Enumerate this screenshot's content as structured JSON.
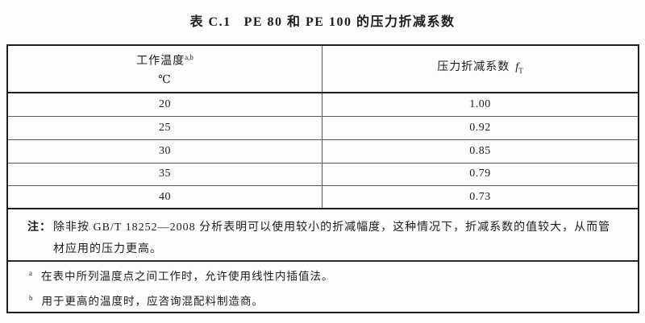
{
  "document": {
    "caption_label": "表 C.1",
    "caption_text": "PE 80 和 PE 100 的压力折减系数"
  },
  "table": {
    "col1_header": {
      "title": "工作温度",
      "superscript": "a,b",
      "unit": "℃"
    },
    "col2_header": {
      "title": "压力折减系数",
      "symbol": "f",
      "symbol_sub": "T"
    },
    "rows": [
      {
        "temperature": "20",
        "factor": "1.00"
      },
      {
        "temperature": "25",
        "factor": "0.92"
      },
      {
        "temperature": "30",
        "factor": "0.85"
      },
      {
        "temperature": "35",
        "factor": "0.79"
      },
      {
        "temperature": "40",
        "factor": "0.73"
      }
    ]
  },
  "note": {
    "label": "注：",
    "text": "除非按 GB/T 18252—2008 分析表明可以使用较小的折减幅度，这种情况下，折减系数的值较大，从而管材应用的压力更高。"
  },
  "footnotes": [
    {
      "marker": "a",
      "text": "在表中所列温度点之间工作时，允许使用线性内插值法。"
    },
    {
      "marker": "b",
      "text": "用于更高的温度时，应咨询混配料制造商。"
    }
  ]
}
